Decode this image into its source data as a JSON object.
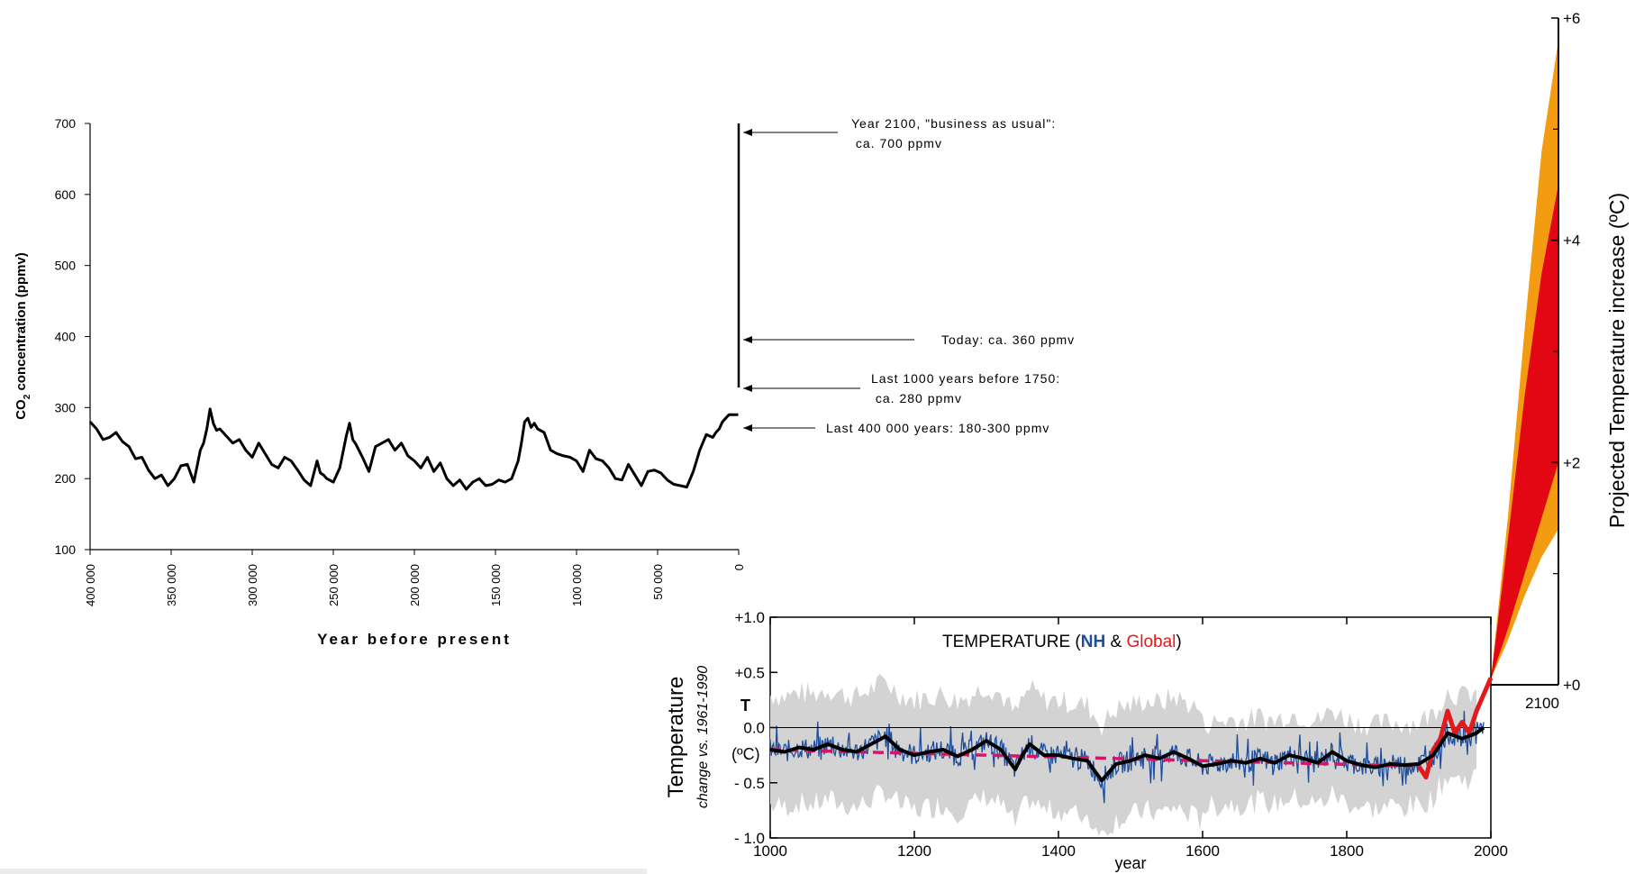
{
  "chart_data": [
    {
      "type": "line",
      "xlabel": "Year before present",
      "ylabel_main": "CO",
      "ylabel_sub": "2",
      "ylabel_rest": " concentration (ppmv)",
      "xlim": [
        400000,
        0
      ],
      "ylim": [
        100,
        700
      ],
      "x_tick_labels": [
        "400 000",
        "350 000",
        "300 000",
        "250 000",
        "200 000",
        "150 000",
        "100 000",
        "50 000",
        "0"
      ],
      "x_tick_values": [
        400000,
        350000,
        300000,
        250000,
        200000,
        150000,
        100000,
        50000,
        0
      ],
      "y_tick_labels": [
        "100",
        "200",
        "300",
        "400",
        "500",
        "600",
        "700"
      ],
      "y_tick_values": [
        100,
        200,
        300,
        400,
        500,
        600,
        700
      ],
      "series": [
        {
          "x": [
            400000,
            396000,
            392000,
            388000,
            384000,
            380000,
            376000,
            372000,
            368000,
            364000,
            360000,
            356000,
            352000,
            348000,
            344000,
            340000,
            336000,
            332000,
            330000,
            328000,
            326000,
            324000,
            322000,
            320000,
            316000,
            312000,
            308000,
            304000,
            300000,
            296000,
            292000,
            288000,
            284000,
            280000,
            276000,
            272000,
            268000,
            264000,
            260000,
            258000,
            256000,
            254000,
            250000,
            246000,
            242000,
            240000,
            238000,
            236000,
            232000,
            228000,
            224000,
            220000,
            216000,
            212000,
            208000,
            204000,
            200000,
            196000,
            192000,
            188000,
            184000,
            180000,
            176000,
            172000,
            168000,
            164000,
            160000,
            156000,
            152000,
            148000,
            144000,
            140000,
            136000,
            134000,
            132000,
            130000,
            128000,
            126000,
            124000,
            120000,
            116000,
            112000,
            108000,
            104000,
            100000,
            96000,
            92000,
            88000,
            84000,
            80000,
            76000,
            72000,
            68000,
            64000,
            60000,
            56000,
            52000,
            48000,
            44000,
            40000,
            36000,
            32000,
            28000,
            24000,
            20000,
            16000,
            14000,
            12000,
            10000,
            8000,
            6000,
            4000,
            2000,
            1000,
            250,
            0
          ],
          "y": [
            280,
            270,
            255,
            258,
            265,
            252,
            245,
            228,
            230,
            212,
            200,
            205,
            190,
            200,
            218,
            220,
            195,
            240,
            250,
            270,
            298,
            278,
            268,
            270,
            260,
            250,
            255,
            240,
            230,
            250,
            235,
            220,
            215,
            230,
            225,
            212,
            198,
            190,
            225,
            208,
            205,
            200,
            195,
            215,
            260,
            278,
            255,
            248,
            230,
            210,
            245,
            250,
            255,
            240,
            250,
            232,
            225,
            215,
            230,
            210,
            222,
            200,
            190,
            198,
            185,
            195,
            200,
            190,
            192,
            198,
            195,
            200,
            225,
            250,
            280,
            285,
            272,
            278,
            270,
            265,
            240,
            235,
            232,
            230,
            225,
            210,
            240,
            228,
            225,
            215,
            200,
            198,
            220,
            205,
            190,
            210,
            212,
            208,
            198,
            192,
            190,
            188,
            210,
            240,
            262,
            258,
            265,
            270,
            280,
            285,
            290,
            290,
            290,
            290,
            290,
            700
          ]
        }
      ],
      "annotations": [
        {
          "lines": [
            "Year 2100, \"business as usual\":",
            " ca. 700 ppmv"
          ],
          "points_to": 690
        },
        {
          "lines": [
            "Today: ca. 360 ppmv"
          ],
          "points_to": 397
        },
        {
          "lines": [
            "Last 1000 years before 1750:",
            " ca. 280 ppmv"
          ],
          "points_to": 330
        },
        {
          "lines": [
            "Last 400 000 years: 180-300 ppmv"
          ],
          "points_to": 276
        }
      ]
    },
    {
      "type": "line",
      "title_prefix": "TEMPERATURE  (",
      "title_nh": "NH",
      "title_amp": " & ",
      "title_global": "Global",
      "title_suffix": ")",
      "xlabel": "year",
      "ylabel": "Temperature",
      "ylabel_sub": "change vs. 1961-1990",
      "y_axis_mark": "T",
      "y_axis_unit": "(ºC)",
      "xlim": [
        1000,
        2000
      ],
      "ylim": [
        -1.0,
        1.0
      ],
      "x_tick_labels": [
        "1000",
        "1200",
        "1400",
        "1600",
        "1800",
        "2000"
      ],
      "x_tick_values": [
        1000,
        1200,
        1400,
        1600,
        1800,
        2000
      ],
      "y_tick_labels": [
        "+1.0",
        "+0.5",
        "0.0",
        "- 0.5",
        "- 1.0"
      ],
      "y_tick_values": [
        1.0,
        0.5,
        0.0,
        -0.5,
        -1.0
      ],
      "colors": {
        "uncertainty": "#d3d3d3",
        "nh": "#1e4d9c",
        "global": "#e11b1b",
        "trend": "#d4166b",
        "smooth": "#000000"
      },
      "smooth_series": {
        "x": [
          1000,
          1020,
          1040,
          1060,
          1080,
          1100,
          1120,
          1140,
          1160,
          1180,
          1200,
          1220,
          1240,
          1260,
          1280,
          1300,
          1320,
          1340,
          1350,
          1360,
          1380,
          1400,
          1420,
          1440,
          1460,
          1480,
          1500,
          1520,
          1540,
          1560,
          1580,
          1600,
          1620,
          1640,
          1660,
          1680,
          1700,
          1720,
          1740,
          1760,
          1780,
          1800,
          1820,
          1840,
          1860,
          1880,
          1900,
          1920,
          1940,
          1960,
          1980,
          1990
        ],
        "y": [
          -0.2,
          -0.22,
          -0.18,
          -0.2,
          -0.15,
          -0.2,
          -0.22,
          -0.15,
          -0.08,
          -0.2,
          -0.25,
          -0.22,
          -0.2,
          -0.26,
          -0.2,
          -0.12,
          -0.2,
          -0.38,
          -0.25,
          -0.15,
          -0.25,
          -0.25,
          -0.28,
          -0.3,
          -0.48,
          -0.33,
          -0.3,
          -0.25,
          -0.28,
          -0.22,
          -0.28,
          -0.35,
          -0.33,
          -0.3,
          -0.32,
          -0.28,
          -0.32,
          -0.25,
          -0.28,
          -0.32,
          -0.22,
          -0.3,
          -0.34,
          -0.36,
          -0.33,
          -0.34,
          -0.33,
          -0.25,
          -0.05,
          -0.1,
          -0.05,
          0.0
        ]
      },
      "trend_series": {
        "x": [
          1000,
          1900
        ],
        "y": [
          -0.2,
          -0.35
        ]
      },
      "global_series": {
        "x": [
          1900,
          1910,
          1920,
          1930,
          1940,
          1950,
          1960,
          1970,
          1980,
          1990,
          2000
        ],
        "y": [
          -0.35,
          -0.45,
          -0.2,
          -0.1,
          0.15,
          -0.05,
          0.05,
          -0.05,
          0.15,
          0.3,
          0.45
        ]
      }
    },
    {
      "type": "area",
      "ylabel": "Projected Temperature increase   (ºC)",
      "x_tick_labels": [
        "2100"
      ],
      "y_tick_labels": [
        "+0",
        "+2",
        "+4",
        "+6"
      ],
      "y_tick_values": [
        0,
        2,
        4,
        6
      ],
      "ylim": [
        0,
        6
      ],
      "xlim": [
        2000,
        2100
      ],
      "colors": {
        "outer": "#f39c12",
        "inner": "#e30613"
      },
      "bands": {
        "x": [
          2000,
          2025,
          2050,
          2075,
          2100
        ],
        "outer_low": [
          0.05,
          0.4,
          0.8,
          1.15,
          1.4
        ],
        "inner_low": [
          0.05,
          0.5,
          1.0,
          1.5,
          2.0
        ],
        "inner_high": [
          0.05,
          1.3,
          2.6,
          3.7,
          4.5
        ],
        "outer_high": [
          0.05,
          1.5,
          3.2,
          4.8,
          5.8
        ]
      }
    }
  ]
}
